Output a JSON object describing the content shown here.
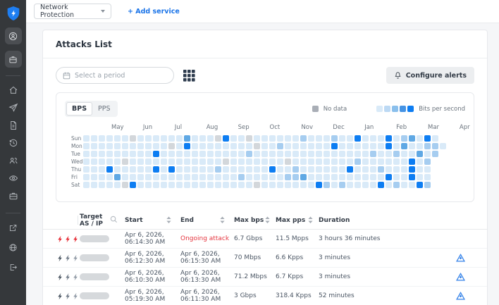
{
  "colors": {
    "accent_blue": "#0d7df2",
    "link_blue": "#1b74e8",
    "danger_red": "#e5353f",
    "sidebar_bg": "#35383b",
    "no_data_gray": "#a9aeb6"
  },
  "sidebar": {
    "logo_icon": "shield-bolt-logo",
    "top_buttons": [
      "account-icon",
      "workspace-icon"
    ],
    "nav_icons": [
      "home-icon",
      "send-icon",
      "document-icon",
      "history-icon",
      "users-icon",
      "eye-icon",
      "briefcase-icon"
    ],
    "footer_icons": [
      "external-link-icon",
      "globe-icon",
      "logout-icon"
    ]
  },
  "topbar": {
    "service_selector_value": "Network Protection",
    "add_service_label": "+ Add service"
  },
  "attacks": {
    "title": "Attacks List",
    "period_placeholder": "Select a period",
    "configure_alerts_label": "Configure alerts"
  },
  "heatmap": {
    "toggle": [
      "BPS",
      "PPS"
    ],
    "legend": {
      "no_data_label": "No data",
      "no_data_color": "#a9aeb6",
      "swatches": [
        "#d9eaf8",
        "#bcd9f4",
        "#8abfec",
        "#4593e4",
        "#0d7df2"
      ],
      "scale_label": "Bits per second"
    },
    "months": [
      "May",
      "Jun",
      "Jul",
      "Aug",
      "Sep",
      "Oct",
      "Nov",
      "Dec",
      "Jan",
      "Feb",
      "Mar",
      "Apr"
    ],
    "days": [
      "Sun",
      "Mon",
      "Tue",
      "Wed",
      "Thu",
      "Fri",
      "Sat"
    ],
    "level_colors": {
      "0": "#d3d7db",
      "1": "#d9eaf8",
      "2": "#a6cdf0",
      "3": "#5fa8e4",
      "4": "#0d7df2"
    },
    "grid": [
      "1111110111111311104110111111211121141114123141.",
      "11111111111014111111110112111111411111141311221",
      "1111111114111111111112111111111111111211211312.",
      "111110111111111111011111110111111112111111412..",
      "111411111414111112111111411211111141112111411..",
      "111131111111111111112111112231111111111411411..",
      "111110411111111111111101111111421211114121142.."
    ]
  },
  "table": {
    "columns": [
      {
        "label": "Target AS / IP",
        "icon": "search-icon"
      },
      {
        "label": "Start",
        "sortable": true
      },
      {
        "label": "End",
        "sortable": true
      },
      {
        "label": "Max bps",
        "sortable": true
      },
      {
        "label": "Max pps",
        "sortable": true
      },
      {
        "label": "Duration"
      }
    ],
    "rows": [
      {
        "severity": "high",
        "start": "Apr 6, 2026, 06:14:30 AM",
        "end": "Ongoing attack",
        "ongoing": true,
        "max_bps": "6.7 Gbps",
        "max_pps": "11.5 Mpps",
        "duration": "3 hours 36 minutes",
        "has_report": false
      },
      {
        "severity": "normal",
        "start": "Apr 6, 2026, 06:12:30 AM",
        "end": "Apr 6, 2026, 06:15:30 AM",
        "ongoing": false,
        "max_bps": "70 Mbps",
        "max_pps": "6.6 Kpps",
        "duration": "3 minutes",
        "has_report": true
      },
      {
        "severity": "normal",
        "start": "Apr 6, 2026, 06:10:30 AM",
        "end": "Apr 6, 2026, 06:13:30 AM",
        "ongoing": false,
        "max_bps": "71.2 Mbps",
        "max_pps": "6.7 Kpps",
        "duration": "3 minutes",
        "has_report": true
      },
      {
        "severity": "normal",
        "start": "Apr 6, 2026, 05:19:30 AM",
        "end": "Apr 6, 2026, 06:11:30 AM",
        "ongoing": false,
        "max_bps": "3 Gbps",
        "max_pps": "318.4 Kpps",
        "duration": "52 minutes",
        "has_report": true
      }
    ]
  }
}
